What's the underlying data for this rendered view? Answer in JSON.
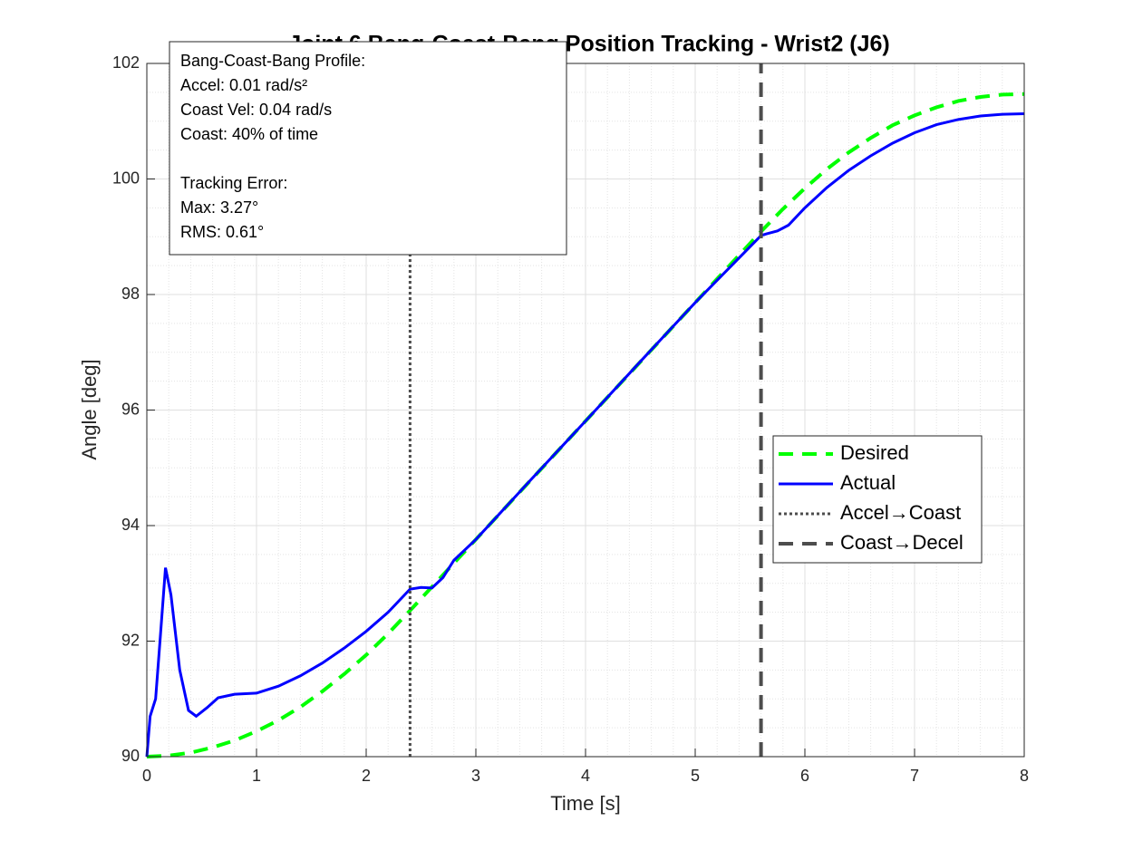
{
  "chart_data": {
    "type": "line",
    "title": "Joint 6 Bang-Coast-Bang Position Tracking - Wrist2 (J6)",
    "x_label": "Time [s]",
    "y_label": "Angle [deg]",
    "xlim": [
      0,
      8
    ],
    "ylim": [
      90,
      102
    ],
    "xticks": [
      0,
      1,
      2,
      3,
      4,
      5,
      6,
      7,
      8
    ],
    "yticks": [
      90,
      92,
      94,
      96,
      98,
      100,
      102
    ],
    "grid": true,
    "minor_grid": true,
    "legend": "east",
    "series": [
      {
        "name": "Desired",
        "color": "#00ff00",
        "style": "dashed",
        "width": 4,
        "x": [
          0,
          0.2,
          0.4,
          0.6,
          0.8,
          1.0,
          1.2,
          1.4,
          1.6,
          1.8,
          2.0,
          2.2,
          2.4,
          2.6,
          2.8,
          3.0,
          3.2,
          3.4,
          3.6,
          3.8,
          4.0,
          4.2,
          4.4,
          4.6,
          4.8,
          5.0,
          5.2,
          5.4,
          5.6,
          5.8,
          6.0,
          6.2,
          6.4,
          6.6,
          6.8,
          7.0,
          7.2,
          7.4,
          7.6,
          7.8,
          8.0
        ],
        "values": [
          90,
          90.018,
          90.07,
          90.16,
          90.28,
          90.44,
          90.63,
          90.86,
          91.13,
          91.43,
          91.76,
          92.13,
          92.53,
          92.94,
          93.35,
          93.76,
          94.17,
          94.58,
          94.99,
          95.4,
          95.81,
          96.22,
          96.63,
          97.04,
          97.45,
          97.86,
          98.27,
          98.68,
          99.09,
          99.48,
          99.84,
          100.17,
          100.46,
          100.71,
          100.93,
          101.1,
          101.24,
          101.35,
          101.42,
          101.46,
          101.47
        ]
      },
      {
        "name": "Actual",
        "color": "#0000ff",
        "style": "solid",
        "width": 3,
        "x": [
          0,
          0.03,
          0.08,
          0.12,
          0.17,
          0.22,
          0.3,
          0.38,
          0.45,
          0.55,
          0.65,
          0.8,
          1.0,
          1.2,
          1.4,
          1.6,
          1.8,
          2.0,
          2.2,
          2.4,
          2.5,
          2.6,
          2.7,
          2.8,
          3.0,
          3.5,
          4.0,
          4.5,
          5.0,
          5.6,
          5.65,
          5.75,
          5.85,
          6.0,
          6.2,
          6.4,
          6.6,
          6.8,
          7.0,
          7.2,
          7.4,
          7.6,
          7.8,
          8.0
        ],
        "values": [
          90,
          90.7,
          91.0,
          92.0,
          93.27,
          92.8,
          91.5,
          90.8,
          90.7,
          90.85,
          91.02,
          91.08,
          91.1,
          91.22,
          91.4,
          91.62,
          91.88,
          92.17,
          92.5,
          92.9,
          92.93,
          92.92,
          93.1,
          93.4,
          93.76,
          94.79,
          95.81,
          96.84,
          97.86,
          99.02,
          99.05,
          99.1,
          99.2,
          99.5,
          99.85,
          100.15,
          100.4,
          100.62,
          100.8,
          100.94,
          101.03,
          101.09,
          101.12,
          101.13
        ]
      },
      {
        "name": "Accel→Coast",
        "color": "#4d4d4d",
        "style": "dotted",
        "width": 3,
        "x": [
          2.4,
          2.4
        ],
        "values": [
          90,
          102
        ]
      },
      {
        "name": "Coast→Decel",
        "color": "#4d4d4d",
        "style": "dashed",
        "width": 4,
        "x": [
          5.6,
          5.6
        ],
        "values": [
          90,
          102
        ]
      }
    ],
    "annotation": [
      "Bang-Coast-Bang Profile:",
      "Accel: 0.01 rad/s²",
      "Coast Vel: 0.04 rad/s",
      "Coast: 40% of time",
      "",
      "Tracking Error:",
      "Max: 3.27°",
      "RMS: 0.61°"
    ]
  }
}
